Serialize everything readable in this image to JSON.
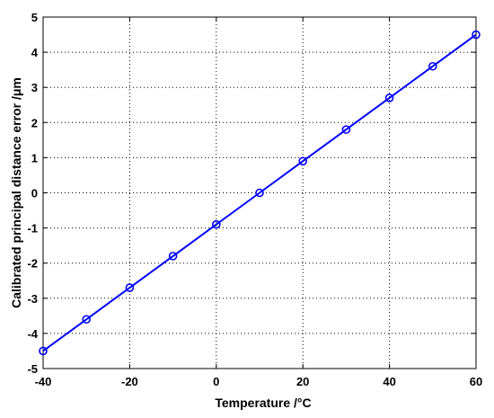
{
  "chart_data": {
    "type": "line",
    "title": "",
    "xlabel": "Temperature /°C",
    "ylabel": "Calibrated principal distance error /μm",
    "xlim": [
      -40,
      60
    ],
    "ylim": [
      -5,
      5
    ],
    "x_ticks": [
      -40,
      -20,
      0,
      20,
      40,
      60
    ],
    "y_ticks": [
      -5,
      -4,
      -3,
      -2,
      -1,
      0,
      1,
      2,
      3,
      4,
      5
    ],
    "grid": true,
    "grid_style": "dotted",
    "legend": "none",
    "series": [
      {
        "color": "#0000ff",
        "marker": "circle",
        "x": [
          -40,
          -30,
          -20,
          -10,
          0,
          10,
          20,
          30,
          40,
          50,
          60
        ],
        "y": [
          -4.5,
          -3.6,
          -2.7,
          -1.8,
          -0.9,
          0.0,
          0.9,
          1.8,
          2.7,
          3.6,
          4.5
        ]
      }
    ]
  }
}
